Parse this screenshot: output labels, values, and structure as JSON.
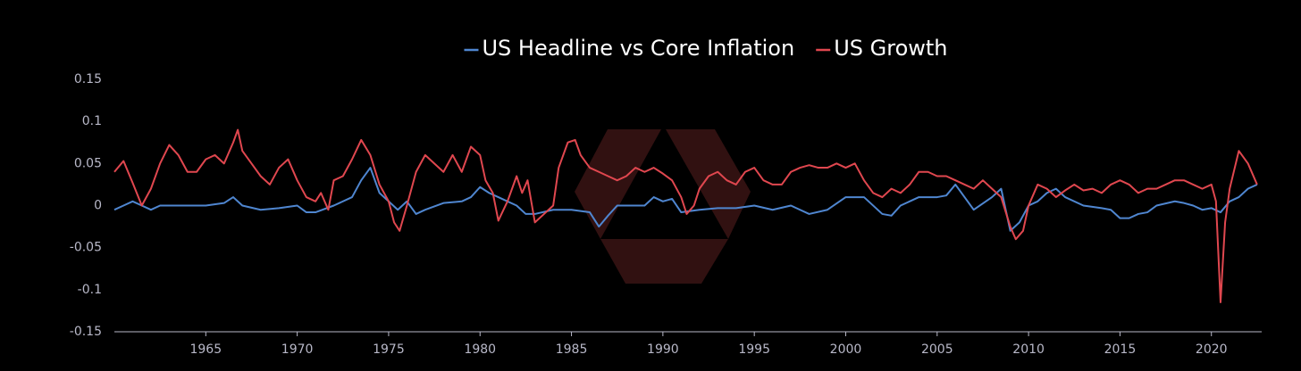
{
  "chart_data": {
    "type": "line",
    "legend_position": "top",
    "xlim": [
      1960,
      2022.75
    ],
    "xticks": [
      1965,
      1970,
      1975,
      1980,
      1985,
      1990,
      1995,
      2000,
      2005,
      2010,
      2015,
      2020
    ],
    "ylim": [
      -0.15,
      0.15
    ],
    "yticks": [
      0.15,
      0.1,
      0.05,
      0,
      -0.05,
      -0.1,
      -0.15
    ],
    "grid": false,
    "series": [
      {
        "name": "US Headline vs Core Inflation",
        "color": "#4f86d0",
        "x": [
          1960,
          1960.5,
          1961,
          1961.5,
          1962,
          1962.5,
          1963,
          1965,
          1966,
          1966.5,
          1967,
          1968,
          1969,
          1970,
          1970.5,
          1971,
          1972,
          1973,
          1973.5,
          1974,
          1974.5,
          1975,
          1975.5,
          1976,
          1976.5,
          1977,
          1978,
          1979,
          1979.5,
          1980,
          1980.5,
          1981,
          1982,
          1982.5,
          1983,
          1984,
          1985,
          1986,
          1986.5,
          1987,
          1987.5,
          1988,
          1989,
          1989.5,
          1990,
          1990.5,
          1991,
          1992,
          1993,
          1994,
          1995,
          1996,
          1997,
          1998,
          1999,
          2000,
          2001,
          2002,
          2002.5,
          2003,
          2004,
          2005,
          2005.5,
          2006,
          2006.5,
          2007,
          2008,
          2008.5,
          2009,
          2009.5,
          2010,
          2010.5,
          2011,
          2011.5,
          2012,
          2013,
          2014,
          2014.5,
          2015,
          2015.5,
          2016,
          2016.5,
          2017,
          2018,
          2018.5,
          2019,
          2019.5,
          2020,
          2020.5,
          2021,
          2021.5,
          2022,
          2022.5
        ],
        "values": [
          -0.005,
          0.0,
          0.005,
          0.0,
          -0.005,
          0.0,
          0.0,
          0.0,
          0.003,
          0.01,
          0.0,
          -0.005,
          -0.003,
          0.0,
          -0.008,
          -0.008,
          0.0,
          0.01,
          0.03,
          0.045,
          0.015,
          0.005,
          -0.005,
          0.005,
          -0.01,
          -0.005,
          0.003,
          0.005,
          0.01,
          0.022,
          0.015,
          0.01,
          0.0,
          -0.01,
          -0.01,
          -0.005,
          -0.005,
          -0.008,
          -0.025,
          -0.012,
          0.0,
          0.0,
          0.0,
          0.01,
          0.005,
          0.008,
          -0.008,
          -0.005,
          -0.003,
          -0.003,
          0.0,
          -0.005,
          0.0,
          -0.01,
          -0.005,
          0.01,
          0.01,
          -0.01,
          -0.012,
          0.0,
          0.01,
          0.01,
          0.012,
          0.025,
          0.01,
          -0.005,
          0.01,
          0.02,
          -0.03,
          -0.02,
          0.0,
          0.005,
          0.015,
          0.02,
          0.01,
          0.0,
          -0.003,
          -0.005,
          -0.015,
          -0.015,
          -0.01,
          -0.008,
          0.0,
          0.005,
          0.003,
          0.0,
          -0.005,
          -0.003,
          -0.008,
          0.005,
          0.01,
          0.02,
          0.025
        ]
      },
      {
        "name": "US Growth",
        "color": "#e0474f",
        "x": [
          1960,
          1960.5,
          1961,
          1961.5,
          1962,
          1962.5,
          1963,
          1963.5,
          1964,
          1964.5,
          1965,
          1965.5,
          1966,
          1966.5,
          1966.75,
          1967,
          1967.5,
          1968,
          1968.5,
          1969,
          1969.5,
          1970,
          1970.5,
          1971,
          1971.3,
          1971.7,
          1972,
          1972.5,
          1973,
          1973.5,
          1974,
          1974.5,
          1975,
          1975.3,
          1975.6,
          1976,
          1976.5,
          1977,
          1977.5,
          1978,
          1978.5,
          1979,
          1979.5,
          1980,
          1980.3,
          1980.7,
          1981,
          1981.5,
          1982,
          1982.3,
          1982.6,
          1983,
          1983.5,
          1984,
          1984.3,
          1984.8,
          1985.2,
          1985.5,
          1986,
          1986.5,
          1987,
          1987.5,
          1988,
          1988.5,
          1989,
          1989.5,
          1990,
          1990.5,
          1991,
          1991.3,
          1991.7,
          1992,
          1992.5,
          1993,
          1993.5,
          1994,
          1994.5,
          1995,
          1995.5,
          1996,
          1996.5,
          1997,
          1997.5,
          1998,
          1998.5,
          1999,
          1999.5,
          2000,
          2000.5,
          2001,
          2001.5,
          2002,
          2002.5,
          2003,
          2003.5,
          2004,
          2004.5,
          2005,
          2005.5,
          2006,
          2006.5,
          2007,
          2007.5,
          2008,
          2008.5,
          2009,
          2009.3,
          2009.7,
          2010,
          2010.5,
          2011,
          2011.5,
          2012,
          2012.5,
          2013,
          2013.5,
          2014,
          2014.5,
          2015,
          2015.5,
          2016,
          2016.5,
          2017,
          2017.5,
          2018,
          2018.5,
          2019,
          2019.5,
          2020,
          2020.25,
          2020.5,
          2020.75,
          2021,
          2021.5,
          2022,
          2022.5
        ],
        "values": [
          0.04,
          0.053,
          0.027,
          0.0,
          0.02,
          0.05,
          0.072,
          0.06,
          0.04,
          0.04,
          0.055,
          0.06,
          0.05,
          0.075,
          0.09,
          0.065,
          0.05,
          0.035,
          0.025,
          0.045,
          0.055,
          0.03,
          0.01,
          0.005,
          0.015,
          -0.005,
          0.03,
          0.035,
          0.055,
          0.078,
          0.06,
          0.025,
          0.005,
          -0.02,
          -0.03,
          0.0,
          0.04,
          0.06,
          0.05,
          0.04,
          0.06,
          0.04,
          0.07,
          0.06,
          0.03,
          0.015,
          -0.018,
          0.005,
          0.035,
          0.015,
          0.03,
          -0.02,
          -0.01,
          0.0,
          0.045,
          0.075,
          0.078,
          0.06,
          0.045,
          0.04,
          0.035,
          0.03,
          0.035,
          0.045,
          0.04,
          0.045,
          0.038,
          0.03,
          0.01,
          -0.01,
          0.0,
          0.02,
          0.035,
          0.04,
          0.03,
          0.025,
          0.04,
          0.045,
          0.03,
          0.025,
          0.025,
          0.04,
          0.045,
          0.048,
          0.045,
          0.045,
          0.05,
          0.045,
          0.05,
          0.03,
          0.015,
          0.01,
          0.02,
          0.015,
          0.025,
          0.04,
          0.04,
          0.035,
          0.035,
          0.03,
          0.025,
          0.02,
          0.03,
          0.02,
          0.01,
          -0.025,
          -0.04,
          -0.03,
          0.0,
          0.025,
          0.02,
          0.01,
          0.018,
          0.025,
          0.018,
          0.02,
          0.015,
          0.025,
          0.03,
          0.025,
          0.015,
          0.02,
          0.02,
          0.025,
          0.03,
          0.03,
          0.025,
          0.02,
          0.025,
          0.005,
          -0.115,
          -0.02,
          0.02,
          0.065,
          0.05,
          0.025
        ]
      }
    ]
  }
}
